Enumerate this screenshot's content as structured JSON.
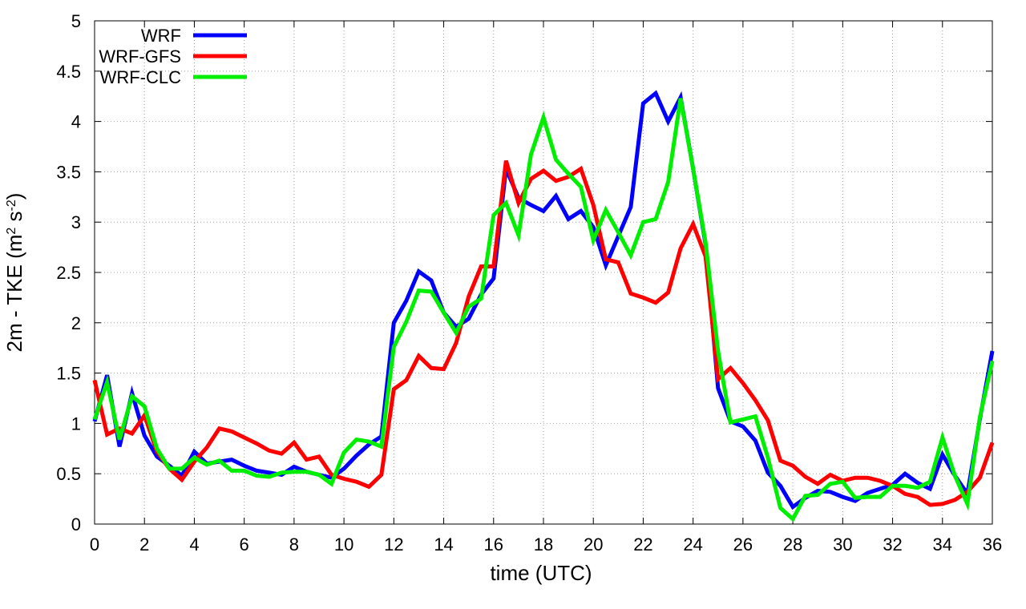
{
  "chart_data": {
    "type": "line",
    "xlabel": "time (UTC)",
    "ylabel_main": "2m - TKE (m",
    "ylabel_sup1": "2",
    "ylabel_mid": " s",
    "ylabel_sup2": "-2",
    "ylabel_end": ")",
    "xlim": [
      0,
      36
    ],
    "ylim": [
      0,
      5
    ],
    "x_ticks": [
      "0",
      "2",
      "4",
      "6",
      "8",
      "10",
      "12",
      "14",
      "16",
      "18",
      "20",
      "22",
      "24",
      "26",
      "28",
      "30",
      "32",
      "34",
      "36"
    ],
    "y_ticks": [
      "0",
      "0.5",
      "1",
      "1.5",
      "2",
      "2.5",
      "3",
      "3.5",
      "4",
      "4.5",
      "5"
    ],
    "grid": true,
    "legend_position": "top-left",
    "x": [
      0,
      0.5,
      1,
      1.5,
      2,
      2.5,
      3,
      3.5,
      4,
      4.5,
      5,
      5.5,
      6,
      6.5,
      7,
      7.5,
      8,
      8.5,
      9,
      9.5,
      10,
      10.5,
      11,
      11.5,
      12,
      12.5,
      13,
      13.5,
      14,
      14.5,
      15,
      15.5,
      16,
      16.5,
      17,
      17.5,
      18,
      18.5,
      19,
      19.5,
      20,
      20.5,
      21,
      21.5,
      22,
      22.5,
      23,
      23.5,
      24,
      24.5,
      25,
      25.5,
      26,
      26.5,
      27,
      27.5,
      28,
      28.5,
      29,
      29.5,
      30,
      30.5,
      31,
      31.5,
      32,
      32.5,
      33,
      33.5,
      34,
      34.5,
      35,
      35.5,
      36
    ],
    "series": [
      {
        "name": "WRF",
        "color": "#0000ff",
        "values": [
          1.02,
          1.48,
          0.77,
          1.3,
          0.88,
          0.67,
          0.58,
          0.48,
          0.72,
          0.6,
          0.62,
          0.64,
          0.58,
          0.53,
          0.51,
          0.49,
          0.57,
          0.52,
          0.49,
          0.46,
          0.55,
          0.68,
          0.79,
          0.87,
          2.0,
          2.22,
          2.51,
          2.42,
          2.1,
          1.96,
          2.04,
          2.28,
          2.44,
          3.53,
          3.24,
          3.17,
          3.11,
          3.26,
          3.03,
          3.11,
          2.95,
          2.57,
          2.86,
          3.15,
          4.18,
          4.28,
          4.0,
          4.24,
          3.53,
          2.78,
          1.35,
          1.02,
          0.97,
          0.83,
          0.51,
          0.38,
          0.17,
          0.26,
          0.33,
          0.32,
          0.27,
          0.23,
          0.31,
          0.35,
          0.39,
          0.5,
          0.41,
          0.35,
          0.69,
          0.48,
          0.3,
          1.04,
          1.72
        ]
      },
      {
        "name": "WRF-GFS",
        "color": "#ff0000",
        "values": [
          1.43,
          0.89,
          0.95,
          0.9,
          1.08,
          0.72,
          0.55,
          0.44,
          0.62,
          0.76,
          0.95,
          0.92,
          0.86,
          0.8,
          0.73,
          0.7,
          0.81,
          0.64,
          0.67,
          0.49,
          0.45,
          0.42,
          0.37,
          0.49,
          1.34,
          1.43,
          1.67,
          1.55,
          1.54,
          1.8,
          2.26,
          2.56,
          2.56,
          3.61,
          3.19,
          3.43,
          3.51,
          3.41,
          3.45,
          3.53,
          3.17,
          2.63,
          2.6,
          2.29,
          2.25,
          2.2,
          2.3,
          2.74,
          2.98,
          2.66,
          1.44,
          1.55,
          1.4,
          1.23,
          1.03,
          0.63,
          0.58,
          0.47,
          0.4,
          0.49,
          0.43,
          0.46,
          0.46,
          0.43,
          0.38,
          0.3,
          0.27,
          0.19,
          0.2,
          0.24,
          0.32,
          0.46,
          0.81
        ]
      },
      {
        "name": "WRF-CLC",
        "color": "#00ee00",
        "values": [
          1.04,
          1.41,
          0.84,
          1.27,
          1.17,
          0.75,
          0.55,
          0.55,
          0.66,
          0.59,
          0.63,
          0.53,
          0.53,
          0.48,
          0.47,
          0.51,
          0.52,
          0.52,
          0.49,
          0.4,
          0.71,
          0.84,
          0.82,
          0.77,
          1.76,
          2.01,
          2.32,
          2.31,
          2.1,
          1.9,
          2.16,
          2.24,
          3.07,
          3.19,
          2.87,
          3.67,
          4.04,
          3.62,
          3.48,
          3.35,
          2.82,
          3.12,
          2.9,
          2.67,
          3.0,
          3.03,
          3.4,
          4.23,
          3.53,
          2.8,
          1.72,
          1.01,
          1.04,
          1.07,
          0.66,
          0.16,
          0.05,
          0.28,
          0.29,
          0.4,
          0.42,
          0.26,
          0.27,
          0.27,
          0.38,
          0.38,
          0.36,
          0.42,
          0.86,
          0.48,
          0.2,
          1.06,
          1.62
        ]
      }
    ]
  }
}
